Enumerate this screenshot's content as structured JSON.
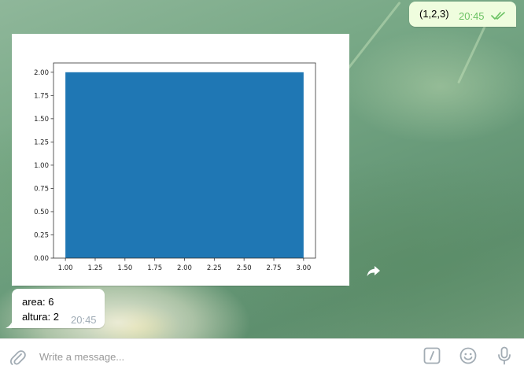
{
  "messages": {
    "outgoing": {
      "text": "(1,2,3)",
      "time": "20:45",
      "status": "read",
      "status_icon": "double-check-icon",
      "time_color": "#6cc264",
      "bubble_color": "#effdde"
    },
    "image_message": {
      "forward_icon": "share-arrow-icon"
    },
    "incoming": {
      "lines": [
        "area: 6",
        "altura: 2"
      ],
      "time": "20:45",
      "time_color": "#a0acb6"
    }
  },
  "composer": {
    "placeholder": "Write a message...",
    "value": "",
    "icons": [
      "paperclip-icon",
      "bot-commands-icon",
      "emoji-icon",
      "microphone-icon"
    ]
  },
  "colors": {
    "accent": "#6cc264",
    "bar": "#1f77b4",
    "icon_gray": "#a2acb4"
  },
  "chart_data": {
    "type": "bar",
    "categories": [
      "1-3"
    ],
    "bars": [
      {
        "x_start": 1.0,
        "x_end": 3.0,
        "value": 2.0
      }
    ],
    "xlim": [
      0.9,
      3.1
    ],
    "ylim": [
      0.0,
      2.1
    ],
    "xticks": [
      "1.00",
      "1.25",
      "1.50",
      "1.75",
      "2.00",
      "2.25",
      "2.50",
      "2.75",
      "3.00"
    ],
    "yticks": [
      "0.00",
      "0.25",
      "0.50",
      "0.75",
      "1.00",
      "1.25",
      "1.50",
      "1.75",
      "2.00"
    ],
    "title": "",
    "xlabel": "",
    "ylabel": "",
    "grid": false,
    "legend": false
  }
}
